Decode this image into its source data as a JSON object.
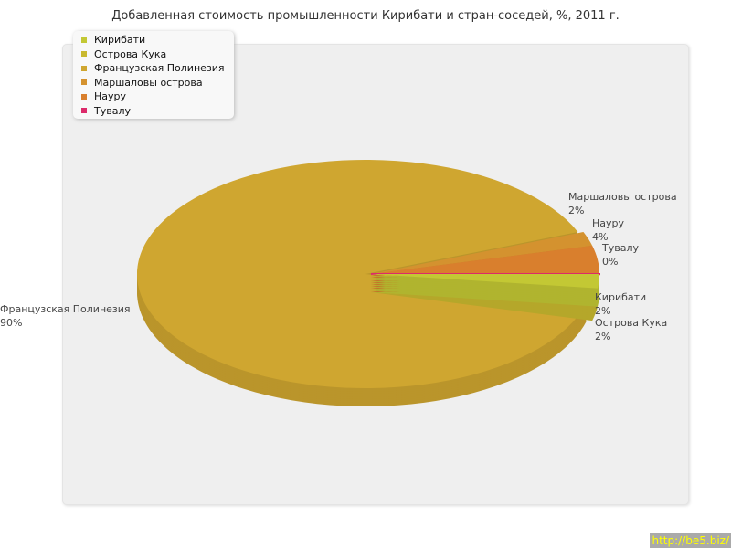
{
  "chart_data": {
    "type": "pie",
    "title": "Добавленная стоимость промышленности Кирибати и стран-соседей, %, 2011 г.",
    "legend_position": "top-left",
    "slices": [
      {
        "name": "Кирибати",
        "value": 2,
        "label": "2%",
        "color": "#c3c834"
      },
      {
        "name": "Острова Кука",
        "value": 2,
        "label": "2%",
        "color": "#c9b92f"
      },
      {
        "name": "Французская Полинезия",
        "value": 90,
        "label": "90%",
        "color": "#cfa630"
      },
      {
        "name": "Маршаловы острова",
        "value": 2,
        "label": "2%",
        "color": "#d4922f"
      },
      {
        "name": "Науру",
        "value": 4,
        "label": "4%",
        "color": "#d97f2d"
      },
      {
        "name": "Тувалу",
        "value": 0,
        "label": "0%",
        "color": "#dc2a6a"
      }
    ]
  },
  "watermark_link": "http://be5.biz/"
}
